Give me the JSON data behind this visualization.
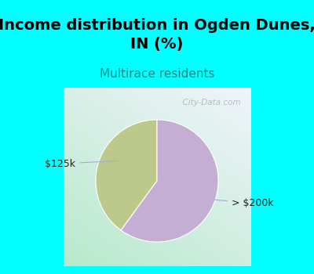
{
  "title": "Income distribution in Ogden Dunes,\nIN (%)",
  "subtitle": "Multirace residents",
  "title_fontsize": 14,
  "subtitle_fontsize": 11,
  "title_color": "#000000",
  "subtitle_color": "#008B8B",
  "bg_color": "#00ffff",
  "slice_values": [
    0.4,
    0.6
  ],
  "slice_colors": [
    "#bdc98a",
    "#c4aed4"
  ],
  "startangle": 90,
  "watermark": "  City-Data.com",
  "label_125k": "$125k",
  "label_200k": "> $200k",
  "label_color": "#222222"
}
